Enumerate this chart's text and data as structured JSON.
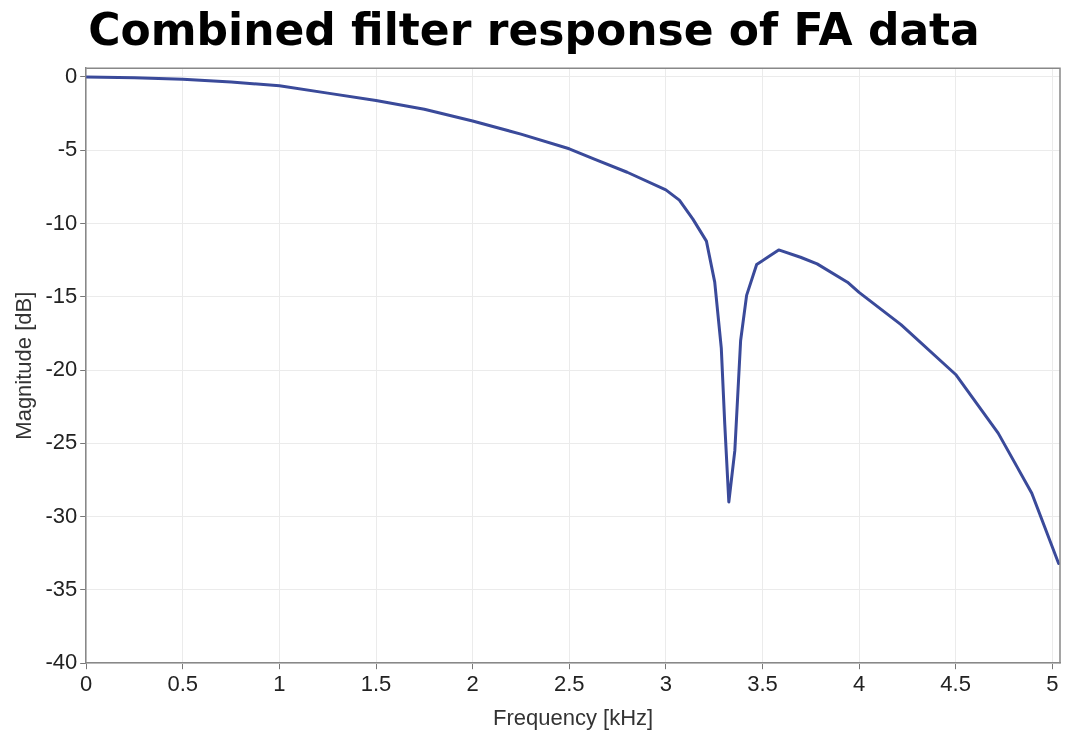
{
  "chart_data": {
    "type": "line",
    "title": "Combined filter response of FA data",
    "xlabel": "Frequency [kHz]",
    "ylabel": "Magnitude [dB]",
    "x": [
      0,
      0.25,
      0.5,
      0.75,
      1.0,
      1.25,
      1.5,
      1.75,
      2.0,
      2.25,
      2.5,
      2.63,
      2.8,
      3.0,
      3.07,
      3.14,
      3.21,
      3.253,
      3.287,
      3.305,
      3.326,
      3.357,
      3.387,
      3.418,
      3.47,
      3.584,
      3.697,
      3.783,
      3.94,
      4.0,
      4.217,
      4.5,
      4.72,
      4.894,
      5.033
    ],
    "series": [
      {
        "color": "#3a4a9a",
        "values": [
          0,
          -0.05,
          -0.15,
          -0.35,
          -0.6,
          -1.1,
          -1.6,
          -2.2,
          -3.0,
          -3.9,
          -4.9,
          -5.6,
          -6.5,
          -7.7,
          -8.4,
          -9.7,
          -11.2,
          -14.0,
          -18.5,
          -23.7,
          -29.0,
          -25.5,
          -18.0,
          -14.9,
          -12.8,
          -11.8,
          -12.3,
          -12.75,
          -14.0,
          -14.7,
          -16.9,
          -20.3,
          -24.3,
          -28.4,
          -33.2
        ]
      }
    ],
    "xlim": [
      0,
      5.04
    ],
    "xticks": [
      0,
      0.5,
      1,
      1.5,
      2,
      2.5,
      3,
      3.5,
      4,
      4.5,
      5
    ],
    "ylim": [
      -40,
      0.6
    ],
    "yticks": [
      -40,
      -35,
      -30,
      -25,
      -20,
      -15,
      -10,
      -5,
      0
    ],
    "grid": true,
    "legend": false,
    "marker": "none",
    "line_style": "solid"
  }
}
